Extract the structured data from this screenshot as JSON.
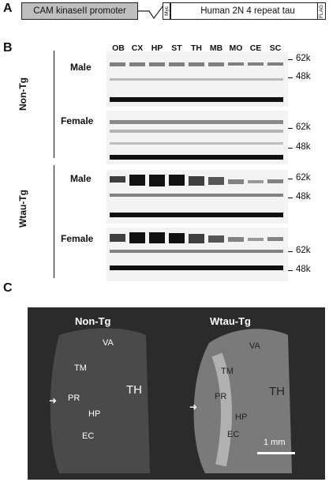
{
  "panels": {
    "a": "A",
    "b": "B",
    "c": "C"
  },
  "construct": {
    "promoter": "CAM kinaseII promoter",
    "myc": "Myc",
    "tau": "Human 2N 4 repeat tau",
    "flag": "FLAG"
  },
  "lanes": [
    "OB",
    "CX",
    "HP",
    "ST",
    "TH",
    "MB",
    "MO",
    "CE",
    "SC"
  ],
  "mw": {
    "high": "62k",
    "low": "48k"
  },
  "groups": {
    "nontg": "Non-Tg",
    "wtau": "Wtau-Tg"
  },
  "sex": {
    "male": "Male",
    "female": "Female"
  },
  "brain": {
    "left_title": "Non-Tg",
    "right_title": "Wtau-Tg",
    "left": {
      "va": "VA",
      "tm": "TM",
      "pr": "PR",
      "hp": "HP",
      "ec": "EC",
      "th": "TH"
    },
    "right": {
      "va": "VA",
      "tm": "TM",
      "pr": "PR",
      "hp": "HP",
      "ec": "EC",
      "th": "TH"
    },
    "scale": "1 mm"
  }
}
